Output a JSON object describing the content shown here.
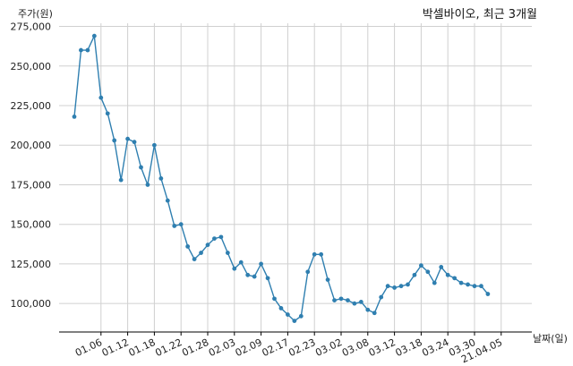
{
  "chart_data": {
    "type": "line",
    "title": "박셀바이오, 최근 3개월",
    "ylabel": "주가(원)",
    "xlabel": "날짜(일)",
    "ylim": [
      82000,
      277000
    ],
    "yticks": [
      100000,
      125000,
      150000,
      175000,
      200000,
      225000,
      250000,
      275000
    ],
    "ytick_labels": [
      "100,000",
      "125,000",
      "150,000",
      "175,000",
      "200,000",
      "225,000",
      "250,000",
      "275,000"
    ],
    "xtick_labels": [
      "01.06",
      "01.12",
      "01.18",
      "01.22",
      "01.28",
      "02.03",
      "02.09",
      "02.17",
      "02.23",
      "03.02",
      "03.08",
      "03.12",
      "03.18",
      "03.24",
      "03.30",
      "21.04.05"
    ],
    "xtick_index": [
      4,
      8,
      12,
      16,
      20,
      24,
      28,
      32,
      36,
      40,
      44,
      48,
      52,
      56,
      60,
      64
    ],
    "grid": true,
    "color": "#2f7fb0",
    "series": [
      {
        "values": [
          218000,
          260000,
          260000,
          269000,
          230000,
          220000,
          203000,
          178000,
          204000,
          202000,
          186000,
          175000,
          200000,
          179000,
          165000,
          149000,
          150000,
          136000,
          128000,
          132000,
          137000,
          141000,
          142000,
          132000,
          122000,
          126000,
          118000,
          117000,
          125000,
          116000,
          103000,
          97000,
          93000,
          89000,
          92000,
          120000,
          131000,
          131000,
          115000,
          102000,
          103000,
          102000,
          100000,
          101000,
          96000,
          94000,
          104000,
          111000,
          110000,
          111000,
          112000,
          118000,
          124000,
          120000,
          113000,
          123000,
          118000,
          116000,
          113000,
          112000,
          111000,
          111000,
          106000
        ]
      }
    ]
  }
}
